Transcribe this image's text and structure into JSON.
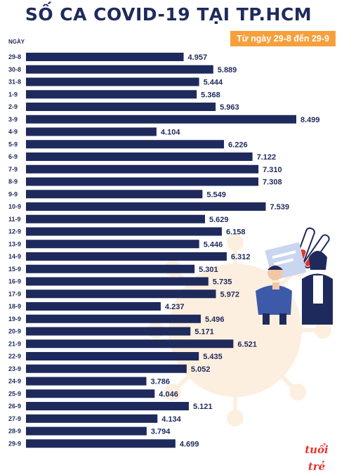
{
  "header": {
    "title": "SỐ CA COVID-19 TẠI TP.HCM",
    "subtitle": "Từ ngày 29-8 đến 29-9",
    "axis_name": "NGÀY"
  },
  "logo_text": "tuổi trẻ",
  "colors": {
    "bar": "#1f2a5c",
    "accent": "#f6a03c",
    "text": "#1f2a5c"
  },
  "chart_data": {
    "type": "bar",
    "orientation": "horizontal",
    "title": "SỐ CA COVID-19 TẠI TP.HCM",
    "subtitle": "Từ ngày 29-8 đến 29-9",
    "ylabel": "NGÀY",
    "xlim": [
      0,
      8499
    ],
    "categories": [
      "29-8",
      "30-8",
      "31-8",
      "1-9",
      "2-9",
      "3-9",
      "4-9",
      "5-9",
      "6-9",
      "7-9",
      "8-9",
      "9-9",
      "10-9",
      "11-9",
      "12-9",
      "13-9",
      "14-9",
      "15-9",
      "16-9",
      "17-9",
      "18-9",
      "19-9",
      "20-9",
      "21-9",
      "22-9",
      "23-9",
      "24-9",
      "25-9",
      "26-9",
      "27-9",
      "28-9",
      "29-9"
    ],
    "values": [
      4957,
      5889,
      5444,
      5368,
      5963,
      8499,
      4104,
      6226,
      7122,
      7310,
      7308,
      5549,
      7539,
      5629,
      6158,
      5446,
      6312,
      5301,
      5735,
      5972,
      4237,
      5496,
      5171,
      6521,
      5435,
      5052,
      3786,
      4046,
      5121,
      4134,
      3794,
      4699
    ],
    "value_labels": [
      "4.957",
      "5.889",
      "5.444",
      "5.368",
      "5.963",
      "8.499",
      "4.104",
      "6.226",
      "7.122",
      "7.310",
      "7.308",
      "5.549",
      "7.539",
      "5.629",
      "6.158",
      "5.446",
      "6.312",
      "5.301",
      "5.735",
      "5.972",
      "4.237",
      "5.496",
      "5.171",
      "6.521",
      "5.435",
      "5.052",
      "3.786",
      "4.046",
      "5.121",
      "4.134",
      "3.794",
      "4.699"
    ],
    "grid": false,
    "legend": "none"
  }
}
